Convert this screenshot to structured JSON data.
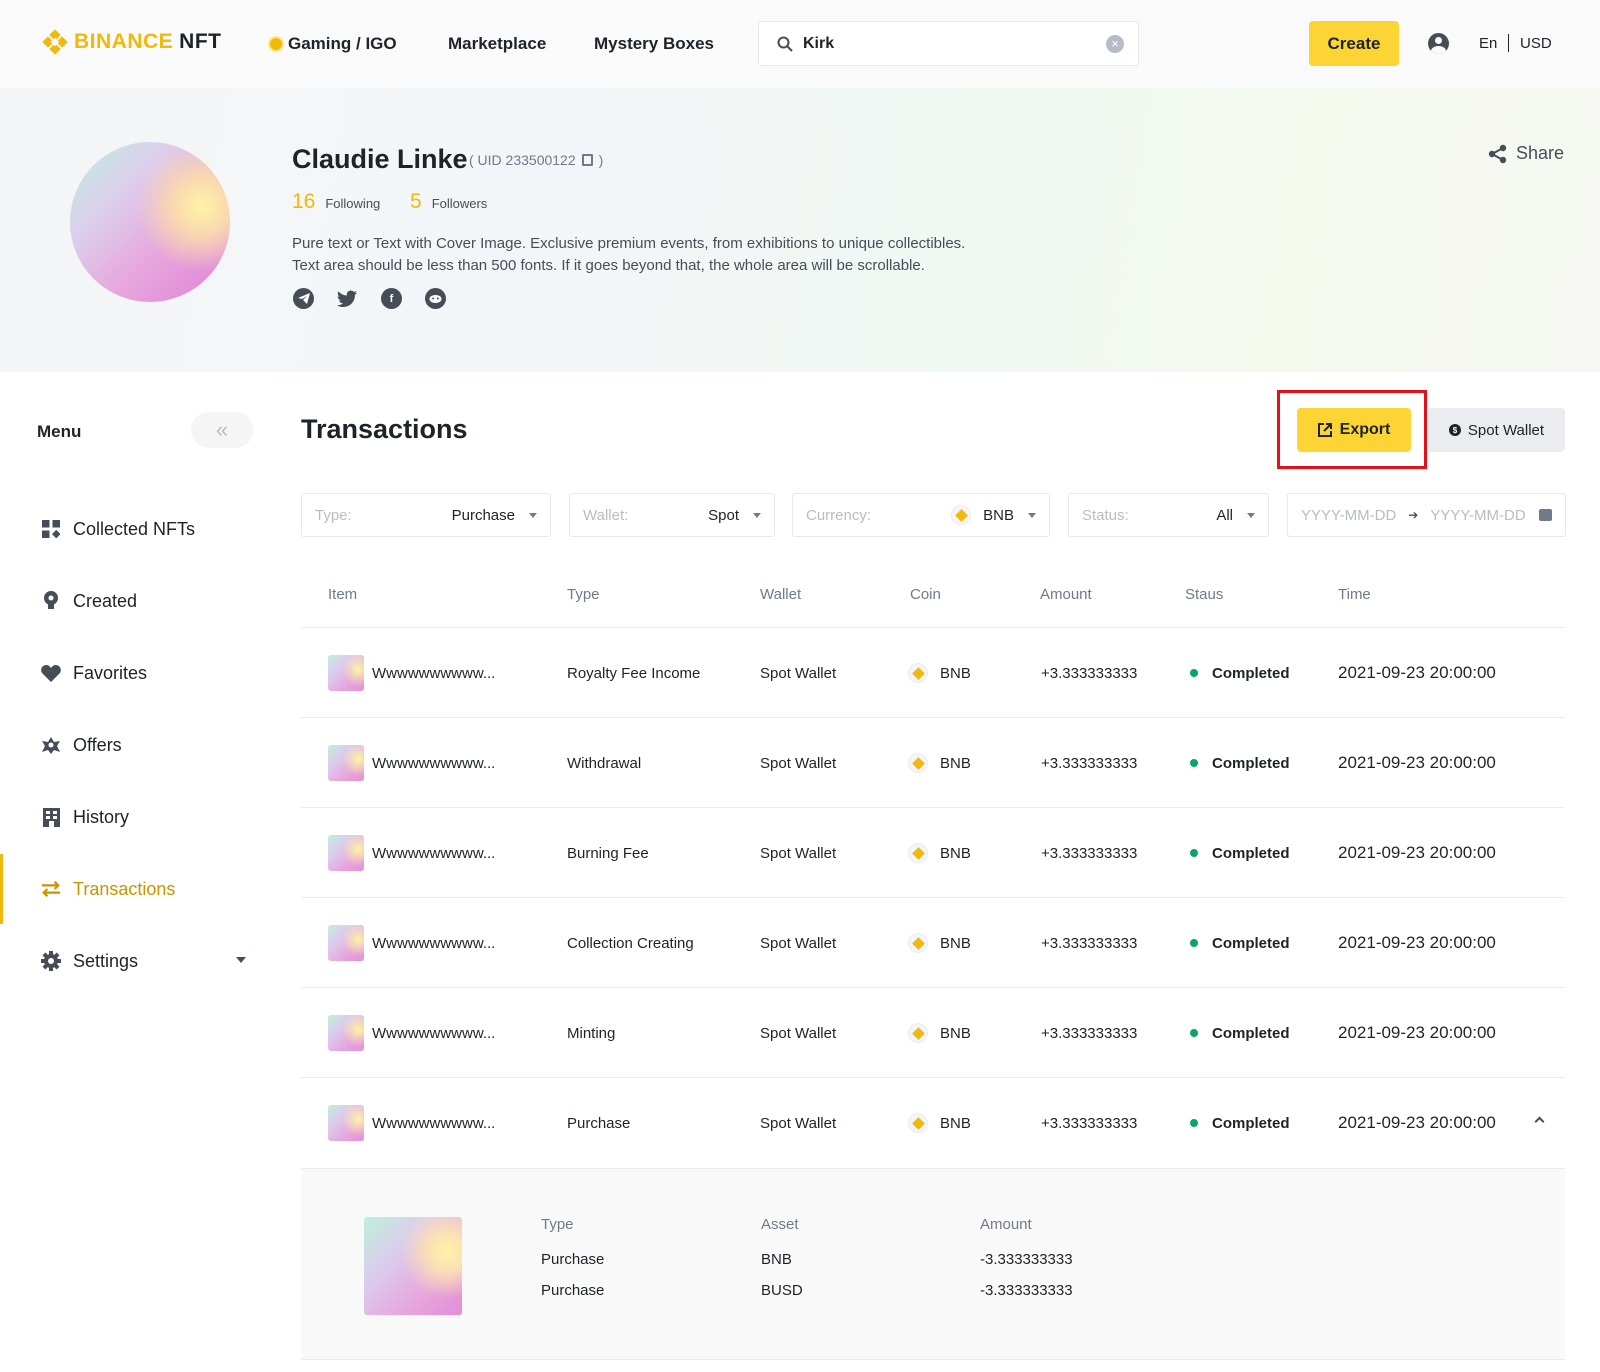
{
  "header": {
    "logo_text": "BINANCE",
    "logo_suffix": "NFT",
    "nav": [
      "Gaming / IGO",
      "Marketplace",
      "Mystery Boxes"
    ],
    "search": {
      "value": "Kirk",
      "placeholder": ""
    },
    "create_label": "Create",
    "language": "En",
    "currency": "USD"
  },
  "profile": {
    "name": "Claudie Linke",
    "uid": "( UID 233500122",
    "uid_close": ")",
    "following_count": "16",
    "following_label": "Following",
    "followers_count": "5",
    "followers_label": "Followers",
    "bio_line1": "Pure text or Text with Cover Image. Exclusive premium events, from exhibitions to unique collectibles.",
    "bio_line2": "Text area should be less than 500 fonts. If it goes beyond that, the whole area will be scrollable.",
    "socials": [
      "telegram-icon",
      "twitter-icon",
      "facebook-icon",
      "reddit-icon"
    ],
    "share_label": "Share"
  },
  "sidebar": {
    "title": "Menu",
    "items": [
      {
        "label": "Collected NFTs",
        "icon": "grid-icon"
      },
      {
        "label": "Created",
        "icon": "bulb-icon"
      },
      {
        "label": "Favorites",
        "icon": "heart-icon"
      },
      {
        "label": "Offers",
        "icon": "handshake-icon"
      },
      {
        "label": "History",
        "icon": "building-icon"
      },
      {
        "label": "Transactions",
        "icon": "swap-icon",
        "active": true
      },
      {
        "label": "Settings",
        "icon": "gear-icon"
      }
    ]
  },
  "main": {
    "title": "Transactions",
    "export_label": "Export",
    "spot_wallet_label": "Spot Wallet",
    "filters": {
      "type": {
        "label": "Type:",
        "value": "Purchase"
      },
      "wallet": {
        "label": "Wallet:",
        "value": "Spot"
      },
      "currency": {
        "label": "Currency:",
        "value": "BNB"
      },
      "status": {
        "label": "Status:",
        "value": "All"
      },
      "date": {
        "start_placeholder": "YYYY-MM-DD",
        "end_placeholder": "YYYY-MM-DD"
      }
    },
    "columns": [
      "Item",
      "Type",
      "Wallet",
      "Coin",
      "Amount",
      "Staus",
      "Time"
    ],
    "rows": [
      {
        "item": "Wwwwwwwwww...",
        "type": "Royalty Fee Income",
        "wallet": "Spot Wallet",
        "coin": "BNB",
        "amount": "+3.333333333",
        "status": "Completed",
        "time": "2021-09-23 20:00:00"
      },
      {
        "item": "Wwwwwwwwww...",
        "type": "Withdrawal",
        "wallet": "Spot Wallet",
        "coin": "BNB",
        "amount": "+3.333333333",
        "status": "Completed",
        "time": "2021-09-23 20:00:00"
      },
      {
        "item": "Wwwwwwwwww...",
        "type": "Burning Fee",
        "wallet": "Spot Wallet",
        "coin": "BNB",
        "amount": "+3.333333333",
        "status": "Completed",
        "time": "2021-09-23 20:00:00"
      },
      {
        "item": "Wwwwwwwwww...",
        "type": "Collection Creating",
        "wallet": "Spot Wallet",
        "coin": "BNB",
        "amount": "+3.333333333",
        "status": "Completed",
        "time": "2021-09-23 20:00:00"
      },
      {
        "item": "Wwwwwwwwww...",
        "type": "Minting",
        "wallet": "Spot Wallet",
        "coin": "BNB",
        "amount": "+3.333333333",
        "status": "Completed",
        "time": "2021-09-23 20:00:00"
      },
      {
        "item": "Wwwwwwwwww...",
        "type": "Purchase",
        "wallet": "Spot Wallet",
        "coin": "BNB",
        "amount": "+3.333333333",
        "status": "Completed",
        "time": "2021-09-23 20:00:00"
      }
    ],
    "detail": {
      "headers": [
        "Type",
        "Asset",
        "Amount"
      ],
      "rows": [
        {
          "type": "Purchase",
          "asset": "BNB",
          "amount": "-3.333333333"
        },
        {
          "type": "Purchase",
          "asset": "BUSD",
          "amount": "-3.333333333"
        }
      ]
    }
  },
  "colors": {
    "brand_yellow": "#fcd535",
    "brand_gold": "#f0b90b",
    "status_green": "#03a66d",
    "highlight_red": "#e3111c"
  }
}
